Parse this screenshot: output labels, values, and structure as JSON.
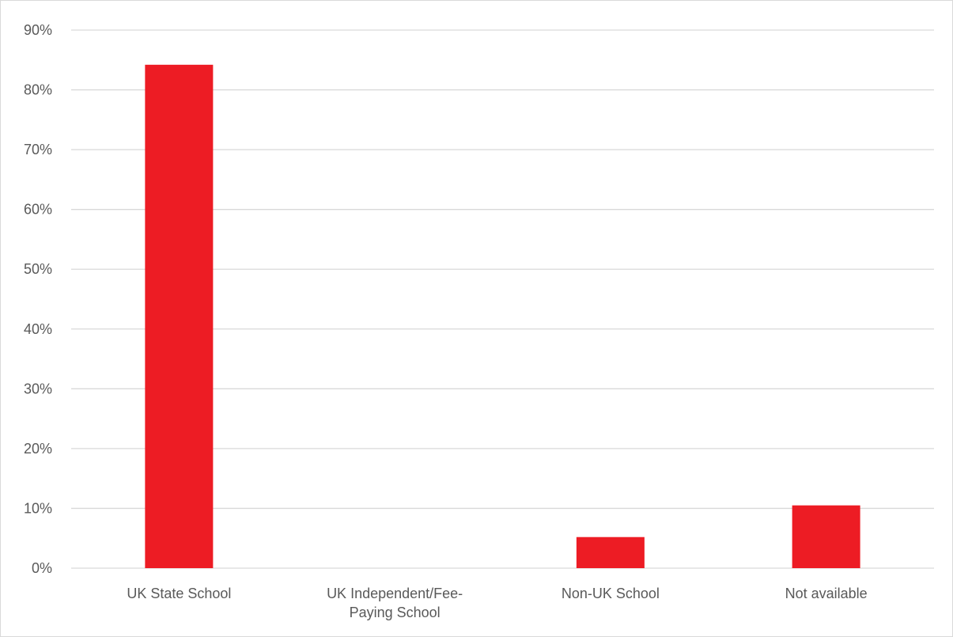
{
  "chart_data": {
    "type": "bar",
    "categories": [
      [
        "UK State School"
      ],
      [
        "UK Independent/Fee-",
        "Paying School"
      ],
      [
        "Non-UK School"
      ],
      [
        "Not available"
      ]
    ],
    "values": [
      0.842,
      0.0,
      0.052,
      0.105
    ],
    "ylim": [
      0,
      0.9
    ],
    "yticks": [
      0,
      0.1,
      0.2,
      0.3,
      0.4,
      0.5,
      0.6,
      0.7,
      0.8,
      0.9
    ],
    "ytick_labels": [
      "0%",
      "10%",
      "20%",
      "30%",
      "40%",
      "50%",
      "60%",
      "70%",
      "80%",
      "90%"
    ],
    "title": "",
    "xlabel": "",
    "ylabel": "",
    "grid": true,
    "legend": "none",
    "bar_color": "#ed1c24",
    "grid_color": "#d9d9d9",
    "text_color": "#595959"
  }
}
